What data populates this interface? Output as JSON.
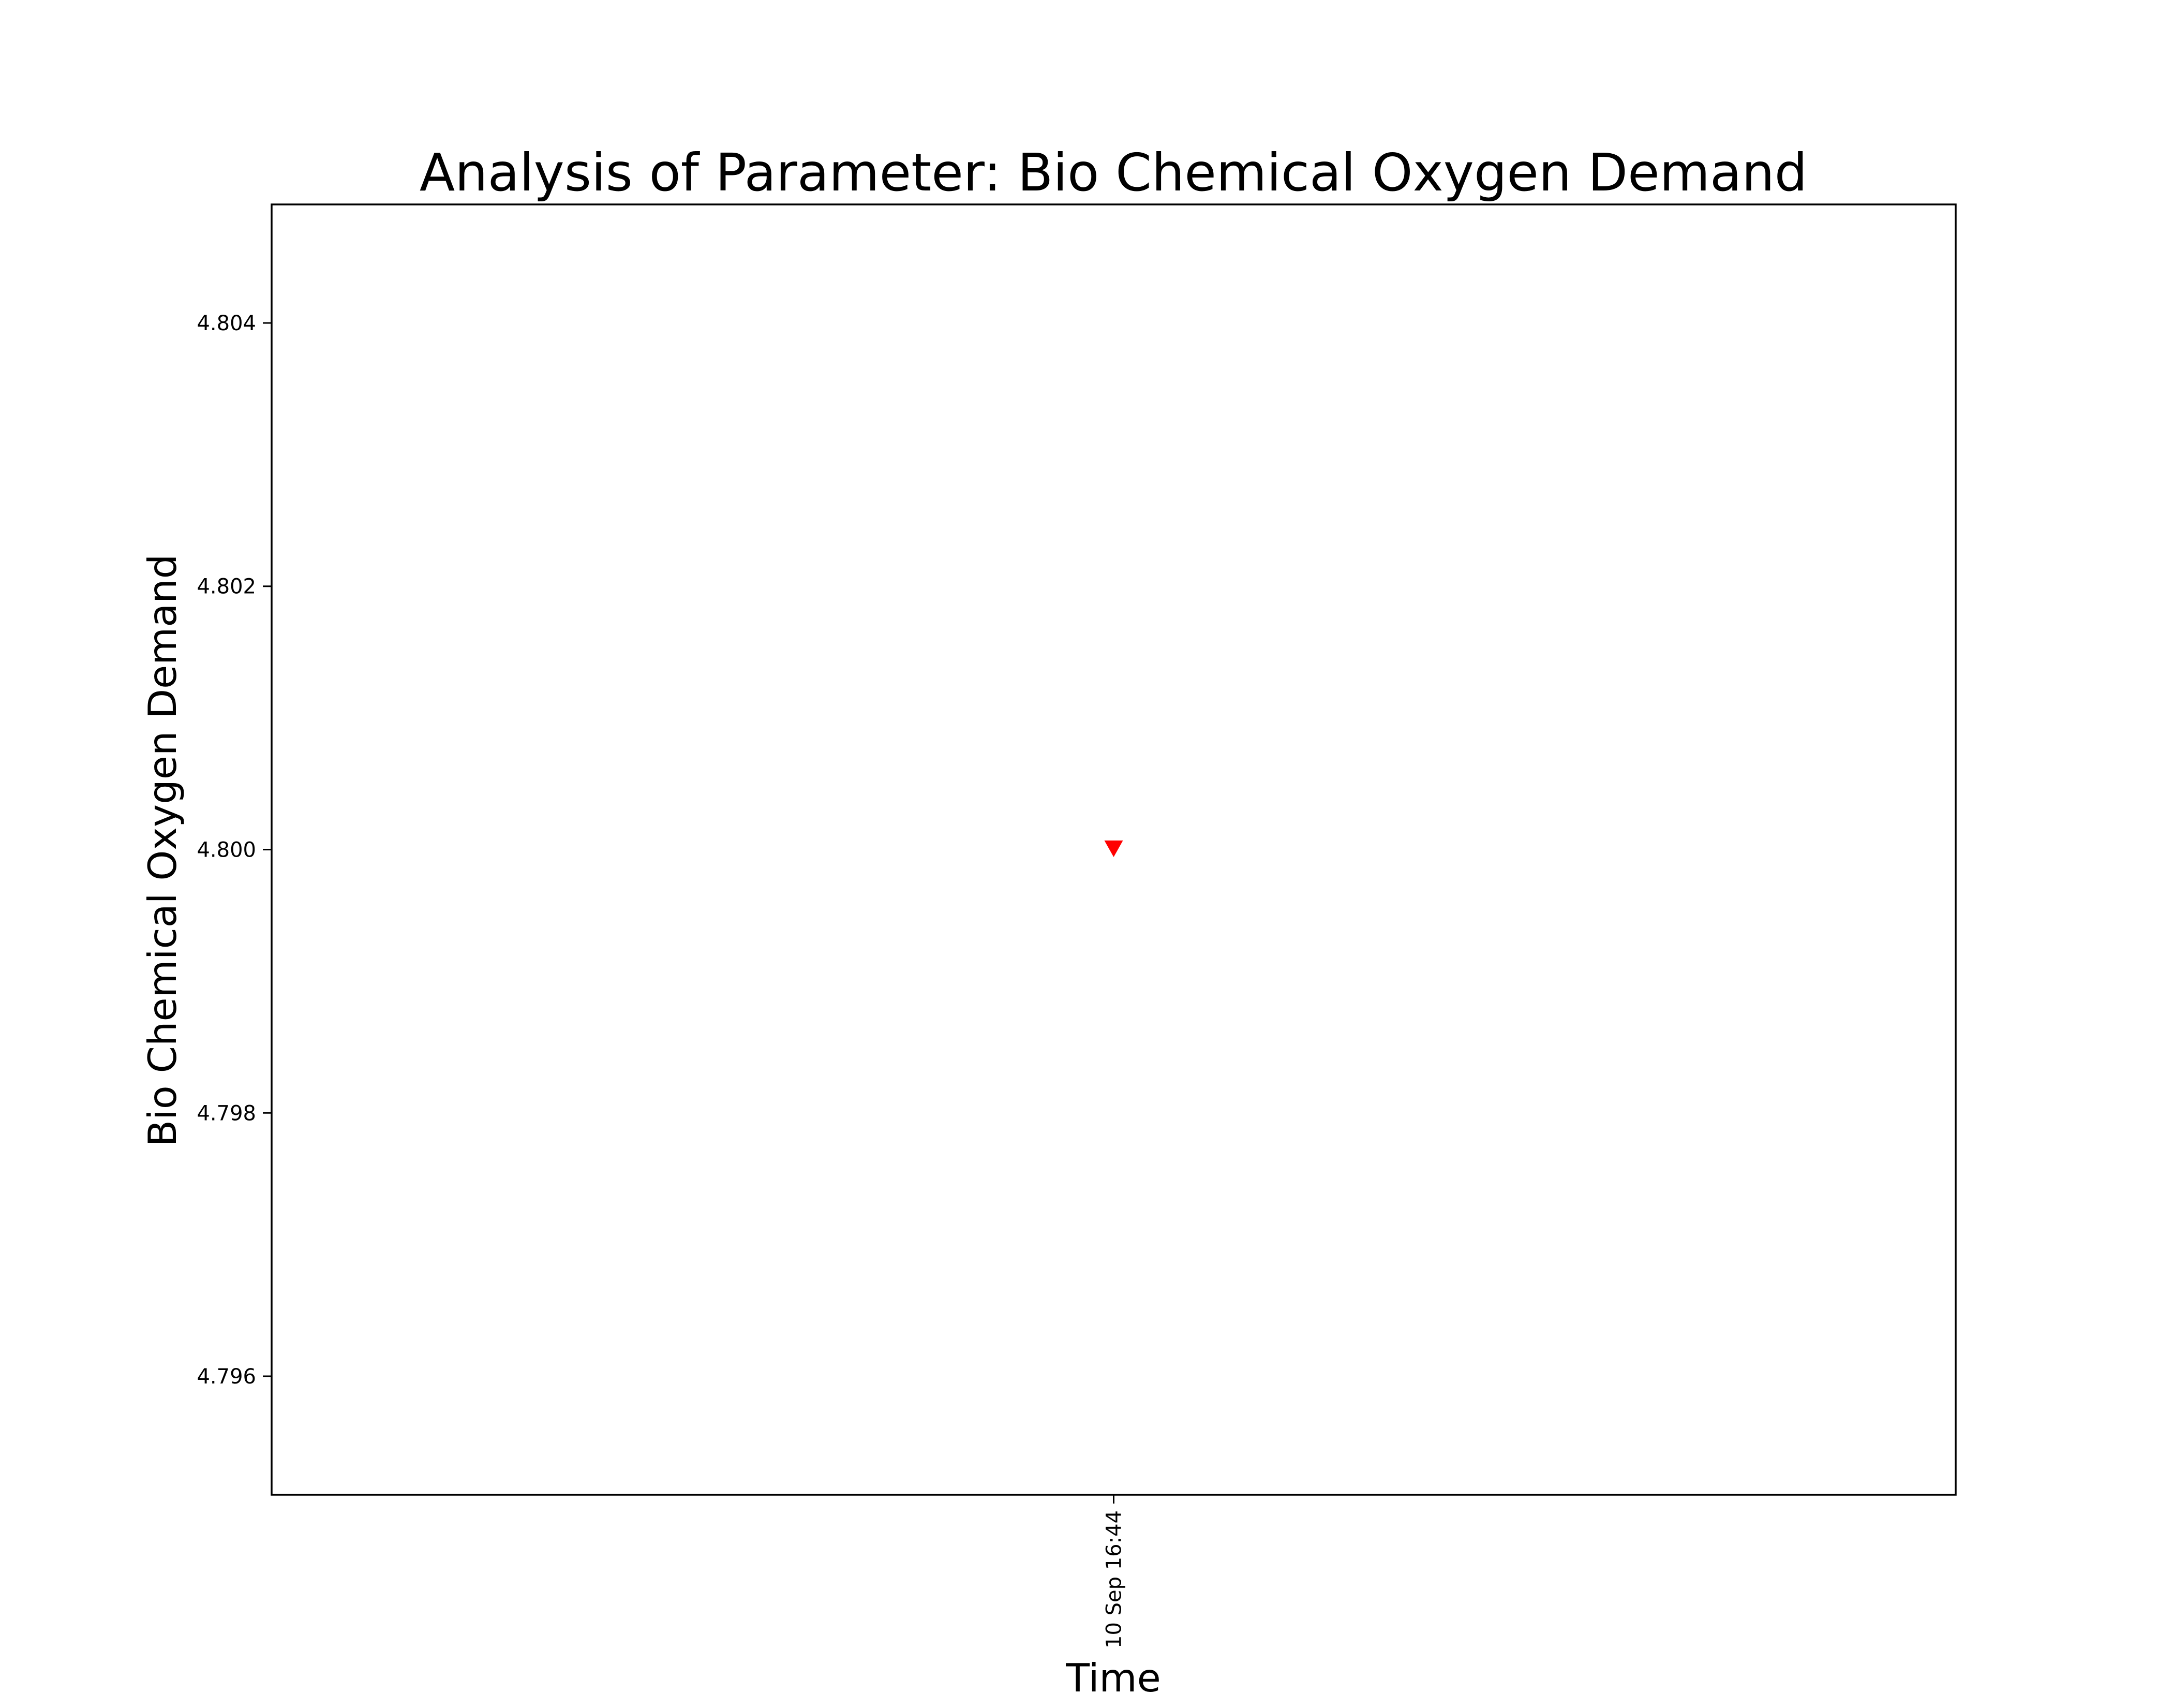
{
  "chart_data": {
    "type": "scatter",
    "title": "Analysis of Parameter: Bio Chemical Oxygen Demand",
    "xlabel": "Time",
    "ylabel": "Bio Chemical Oxygen Demand",
    "x_ticks": [
      "10 Sep 16:44"
    ],
    "y_ticks": [
      4.796,
      4.798,
      4.8,
      4.802,
      4.804
    ],
    "ylim": [
      4.7951,
      4.8049
    ],
    "grid": false,
    "legend": "none",
    "series": [
      {
        "marker": "triangle-down",
        "color": "#ff0000",
        "points": [
          {
            "x": "10 Sep 16:44",
            "y": 4.8
          }
        ]
      }
    ]
  }
}
